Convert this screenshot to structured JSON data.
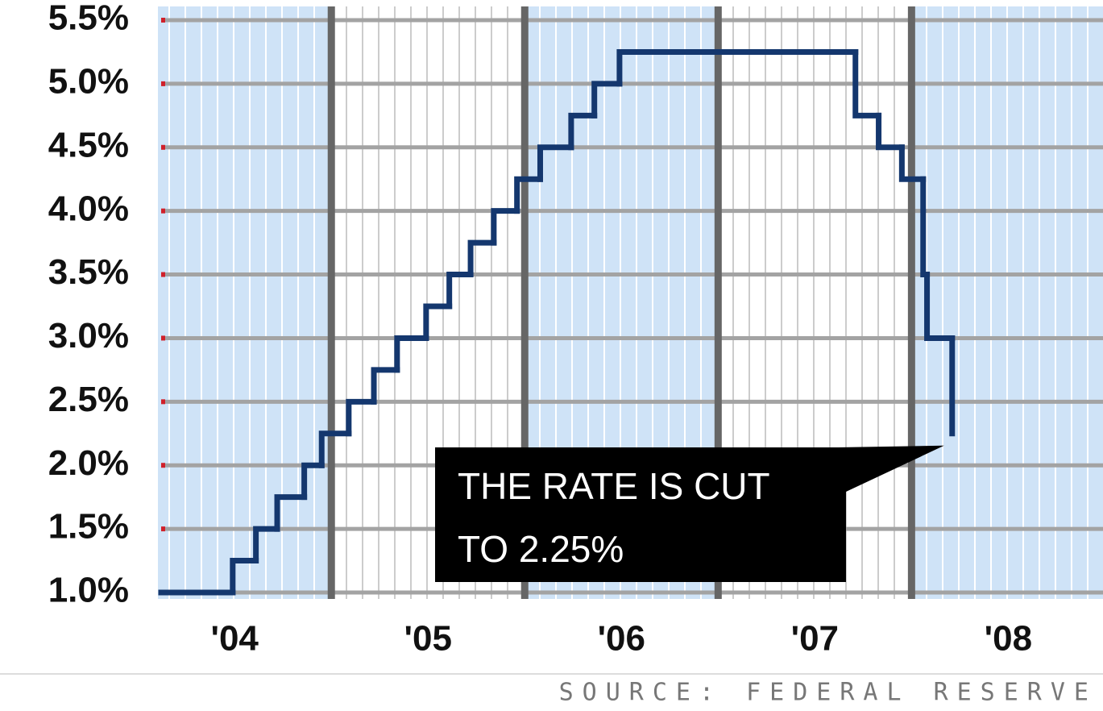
{
  "chart_data": {
    "type": "line",
    "step": true,
    "x": [
      2004.12,
      2004.49,
      2004.61,
      2004.72,
      2004.86,
      2004.95,
      2005.09,
      2005.22,
      2005.34,
      2005.49,
      2005.61,
      2005.72,
      2005.84,
      2005.96,
      2006.08,
      2006.24,
      2006.36,
      2006.49,
      2007.71,
      2007.83,
      2007.95,
      2008.06,
      2008.08,
      2008.21
    ],
    "series": [
      {
        "color": "#14376e",
        "values": [
          1.0,
          1.25,
          1.5,
          1.75,
          2.0,
          2.25,
          2.5,
          2.75,
          3.0,
          3.25,
          3.5,
          3.75,
          4.0,
          4.25,
          4.5,
          4.75,
          5.0,
          5.25,
          4.75,
          4.5,
          4.25,
          3.5,
          3.0,
          2.25
        ]
      }
    ],
    "xlim": [
      2004.12,
      2008.99
    ],
    "xticks": [
      {
        "value": 2004.5,
        "label": "'04"
      },
      {
        "value": 2005.5,
        "label": "'05"
      },
      {
        "value": 2006.5,
        "label": "'06"
      },
      {
        "value": 2007.5,
        "label": "'07"
      },
      {
        "value": 2008.5,
        "label": "'08"
      }
    ],
    "ylim": [
      1.0,
      5.5
    ],
    "yticks": [
      {
        "value": 1.0,
        "label": "1.0%"
      },
      {
        "value": 1.5,
        "label": "1.5%"
      },
      {
        "value": 2.0,
        "label": "2.0%"
      },
      {
        "value": 2.5,
        "label": "2.5%"
      },
      {
        "value": 3.0,
        "label": "3.0%"
      },
      {
        "value": 3.5,
        "label": "3.5%"
      },
      {
        "value": 4.0,
        "label": "4.0%"
      },
      {
        "value": 4.5,
        "label": "4.5%"
      },
      {
        "value": 5.0,
        "label": "5.0%"
      },
      {
        "value": 5.5,
        "label": "5.5%"
      }
    ],
    "grid": true,
    "annotation": [
      "THE RATE IS CUT",
      "TO 2.25%"
    ],
    "source": "SOURCE: FEDERAL RESERVE"
  }
}
